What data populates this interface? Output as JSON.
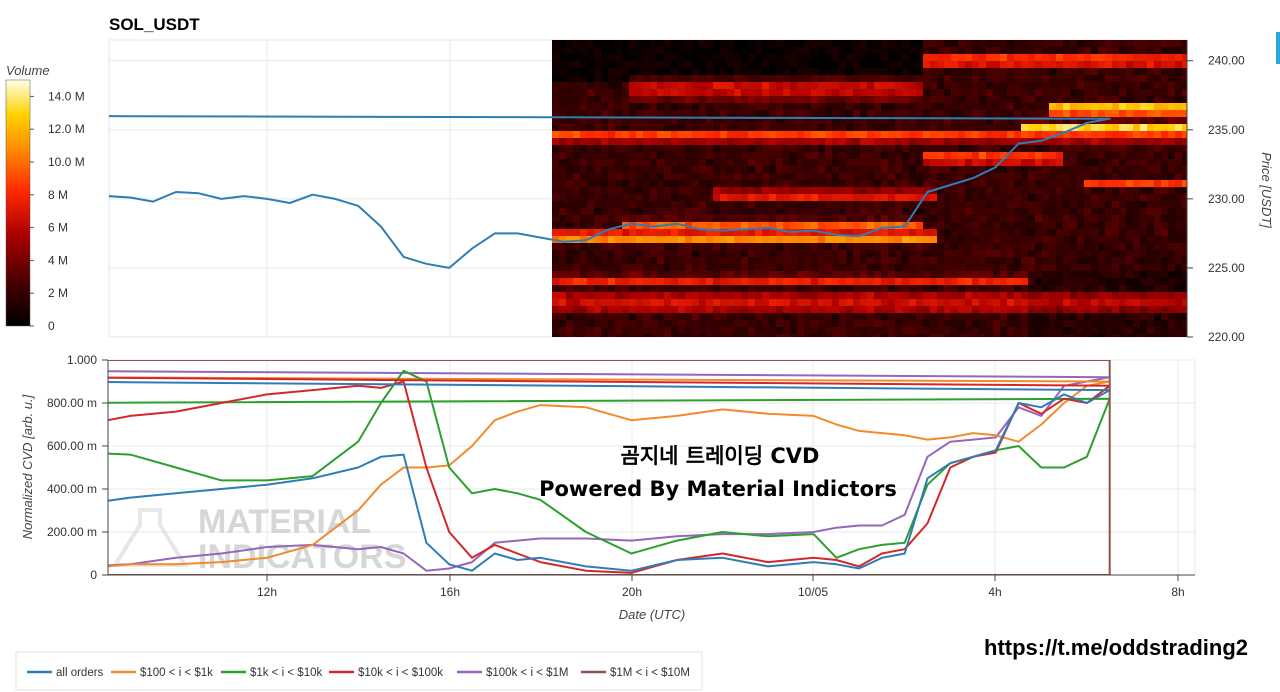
{
  "chart_data": [
    {
      "type": "heatmap",
      "title": "SOL_USDT",
      "ylabel": "Price [USDT]",
      "ylim": [
        220,
        241.5
      ],
      "y_ticks": [
        "240.00",
        "235.00",
        "230.00",
        "225.00",
        "220.00"
      ],
      "colorbar": {
        "label": "Volume",
        "ticks": [
          "14.0 M",
          "12.0 M",
          "10.0 M",
          "8 M",
          "6 M",
          "4 M",
          "2 M",
          "0"
        ],
        "range": [
          0,
          15
        ]
      },
      "heatmap_start_time": "18h",
      "price_series": {
        "name": "price",
        "color": "#2f7db5",
        "x": [
          "07:40",
          "08:00",
          "08:30",
          "09:00",
          "09:30",
          "10:00",
          "10:30",
          "11:00",
          "11:30",
          "12:00",
          "12:30",
          "13:00",
          "13:30",
          "14:00",
          "14:30",
          "15:00",
          "15:30",
          "16:00",
          "16:30",
          "17:00",
          "17:30",
          "18:00",
          "18:30",
          "19:00",
          "19:30",
          "20:00",
          "20:30",
          "21:00",
          "21:30",
          "22:00",
          "22:30",
          "23:00",
          "23:30",
          "00:00",
          "00:30",
          "01:00",
          "01:30",
          "02:00",
          "02:30",
          "03:00",
          "03:30",
          "04:00",
          "04:30",
          "05:00",
          "05:30",
          "06:00",
          "06:30",
          "07:00",
          "07:30",
          "08:00",
          "08:20"
        ],
        "y": [
          229.8,
          229.5,
          230.2,
          230.1,
          229.8,
          230.5,
          230.4,
          230.0,
          230.2,
          230.0,
          229.7,
          230.3,
          230.0,
          229.5,
          228.0,
          225.8,
          225.3,
          225.0,
          226.4,
          227.5,
          227.5,
          227.2,
          226.9,
          227.0,
          227.8,
          228.2,
          228.0,
          228.2,
          227.8,
          227.7,
          227.8,
          227.9,
          227.6,
          227.7,
          227.4,
          227.3,
          227.9,
          228.0,
          230.5,
          231.0,
          231.5,
          232.3,
          234.0,
          234.2,
          234.8,
          235.5,
          235.8,
          236.0,
          235.8,
          236.4,
          236.3
        ]
      }
    },
    {
      "type": "line",
      "ylabel": "Normalized CVD [arb. u.]",
      "xlabel": "Date (UTC)",
      "ylim": [
        0,
        1
      ],
      "y_ticks": [
        "1.000",
        "800.00 m",
        "600.00 m",
        "400.00 m",
        "200.00 m",
        "0"
      ],
      "x_ticks": [
        "12h",
        "16h",
        "20h",
        "10/05",
        "4h",
        "8h"
      ],
      "x": [
        "07:00",
        "08:00",
        "09:00",
        "10:00",
        "11:00",
        "12:00",
        "13:00",
        "14:00",
        "14:30",
        "15:00",
        "15:30",
        "16:00",
        "16:30",
        "17:00",
        "17:30",
        "18:00",
        "19:00",
        "20:00",
        "21:00",
        "22:00",
        "23:00",
        "00:00",
        "00:30",
        "01:00",
        "01:30",
        "02:00",
        "02:30",
        "03:00",
        "03:30",
        "04:00",
        "04:30",
        "05:00",
        "05:30",
        "06:00",
        "06:30",
        "07:00",
        "07:30",
        "08:00",
        "08:20"
      ],
      "series": [
        {
          "name": "all orders",
          "color": "#2f7db5",
          "values": [
            0.34,
            0.33,
            0.36,
            0.38,
            0.4,
            0.42,
            0.45,
            0.5,
            0.55,
            0.56,
            0.15,
            0.05,
            0.02,
            0.1,
            0.07,
            0.08,
            0.04,
            0.02,
            0.07,
            0.08,
            0.04,
            0.06,
            0.05,
            0.03,
            0.08,
            0.1,
            0.45,
            0.52,
            0.55,
            0.58,
            0.8,
            0.78,
            0.84,
            0.8,
            0.86,
            0.9,
            0.95,
            0.98,
            0.97
          ]
        },
        {
          "name": "$100 < i < $1k",
          "color": "#f28a2e",
          "values": [
            0.03,
            0.03,
            0.05,
            0.05,
            0.06,
            0.08,
            0.14,
            0.3,
            0.42,
            0.5,
            0.5,
            0.51,
            0.6,
            0.72,
            0.76,
            0.79,
            0.78,
            0.72,
            0.74,
            0.77,
            0.75,
            0.74,
            0.7,
            0.67,
            0.66,
            0.65,
            0.63,
            0.64,
            0.66,
            0.65,
            0.62,
            0.7,
            0.8,
            0.88,
            0.9,
            0.92,
            0.94,
            0.96,
            0.97
          ]
        },
        {
          "name": "$1k < i < $10k",
          "color": "#2ca02c",
          "values": [
            0.55,
            0.57,
            0.56,
            0.5,
            0.44,
            0.44,
            0.46,
            0.62,
            0.8,
            0.95,
            0.9,
            0.5,
            0.38,
            0.4,
            0.38,
            0.35,
            0.2,
            0.1,
            0.16,
            0.2,
            0.18,
            0.19,
            0.08,
            0.12,
            0.14,
            0.15,
            0.42,
            0.52,
            0.55,
            0.58,
            0.6,
            0.5,
            0.5,
            0.55,
            0.82,
            0.8,
            0.78,
            0.9,
            0.94
          ]
        },
        {
          "name": "$10k < i < $100k",
          "color": "#d62728",
          "values": [
            0.72,
            0.7,
            0.74,
            0.76,
            0.8,
            0.84,
            0.86,
            0.88,
            0.87,
            0.9,
            0.5,
            0.2,
            0.08,
            0.14,
            0.1,
            0.06,
            0.02,
            0.01,
            0.07,
            0.1,
            0.06,
            0.08,
            0.07,
            0.04,
            0.1,
            0.12,
            0.24,
            0.5,
            0.55,
            0.57,
            0.8,
            0.75,
            0.82,
            0.8,
            0.88,
            0.92,
            0.82,
            0.9,
            0.82
          ]
        },
        {
          "name": "$100k < i < $1M",
          "color": "#9467bd",
          "values": [
            0.07,
            0.04,
            0.05,
            0.08,
            0.1,
            0.13,
            0.14,
            0.12,
            0.13,
            0.1,
            0.02,
            0.03,
            0.06,
            0.15,
            0.16,
            0.17,
            0.17,
            0.16,
            0.18,
            0.19,
            0.19,
            0.2,
            0.22,
            0.23,
            0.23,
            0.28,
            0.55,
            0.62,
            0.63,
            0.64,
            0.78,
            0.74,
            0.88,
            0.9,
            0.92,
            0.95,
            0.97,
            0.99,
            1.0
          ]
        },
        {
          "name": "$1M < i < $10M",
          "color": "#8c564b",
          "values": [
            0,
            0,
            0,
            0,
            0,
            0,
            0,
            0,
            0,
            0,
            0,
            0,
            0,
            0,
            0,
            0,
            0,
            0,
            0,
            0,
            0,
            0,
            0,
            0,
            0,
            0,
            0,
            0,
            0,
            0,
            0,
            0,
            0,
            0,
            1.0,
            1.0,
            1.0,
            1.0,
            1.0
          ]
        }
      ]
    }
  ],
  "overlay": {
    "line1": "곰지네 트레이딩 CVD",
    "line2": "Powered By Material Indictors",
    "logo_line1": "MATERIAL",
    "logo_line2": "INDICATORS",
    "link": "https://t.me/oddstrading2"
  },
  "legend": [
    {
      "label": "all orders",
      "color": "#2f7db5"
    },
    {
      "label": "$100 < i < $1k",
      "color": "#f28a2e"
    },
    {
      "label": "$1k < i < $10k",
      "color": "#2ca02c"
    },
    {
      "label": "$10k < i < $100k",
      "color": "#d62728"
    },
    {
      "label": "$100k < i < $1M",
      "color": "#9467bd"
    },
    {
      "label": "$1M < i < $10M",
      "color": "#8c564b"
    }
  ]
}
